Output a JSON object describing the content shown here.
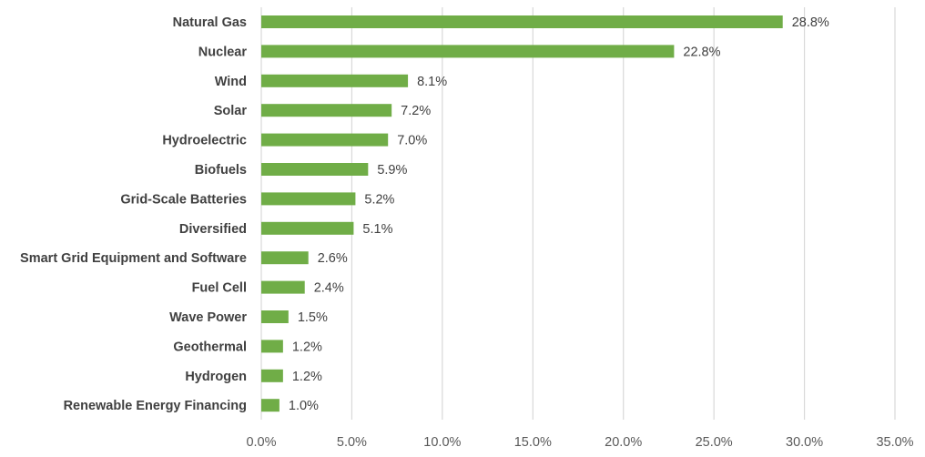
{
  "chart_data": {
    "type": "bar",
    "orientation": "horizontal",
    "title": "",
    "xlabel": "",
    "ylabel": "",
    "categories": [
      "Natural Gas",
      "Nuclear",
      "Wind",
      "Solar",
      "Hydroelectric",
      "Biofuels",
      "Grid-Scale Batteries",
      "Diversified",
      "Smart Grid Equipment and Software",
      "Fuel Cell",
      "Wave Power",
      "Geothermal",
      "Hydrogen",
      "Renewable Energy Financing"
    ],
    "values": [
      28.8,
      22.8,
      8.1,
      7.2,
      7.0,
      5.9,
      5.2,
      5.1,
      2.6,
      2.4,
      1.5,
      1.2,
      1.2,
      1.0
    ],
    "value_labels": [
      "28.8%",
      "22.8%",
      "8.1%",
      "7.2%",
      "7.0%",
      "5.9%",
      "5.2%",
      "5.1%",
      "2.6%",
      "2.4%",
      "1.5%",
      "1.2%",
      "1.2%",
      "1.0%"
    ],
    "xlim": [
      0,
      35
    ],
    "xticks": [
      0,
      5,
      10,
      15,
      20,
      25,
      30,
      35
    ],
    "xtick_labels": [
      "0.0%",
      "5.0%",
      "10.0%",
      "15.0%",
      "20.0%",
      "25.0%",
      "30.0%",
      "35.0%"
    ],
    "grid": "vertical",
    "legend": "none",
    "bar_color": "#70ad47",
    "gridline_color": "#d9d9d9",
    "text_color": "#404040"
  }
}
